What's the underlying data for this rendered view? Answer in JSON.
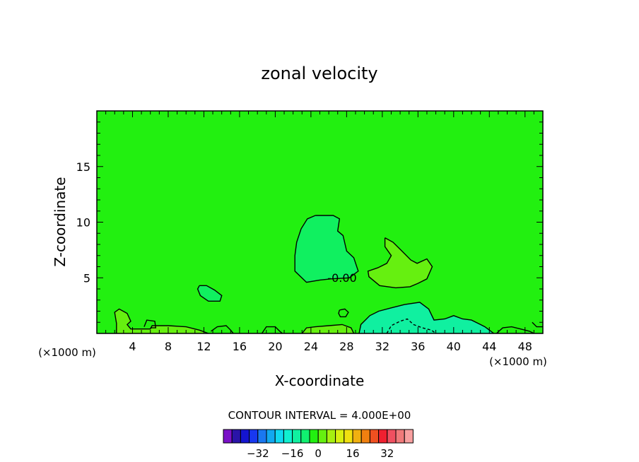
{
  "chart_data": {
    "type": "heatmap",
    "title": "zonal velocity",
    "xlabel": "X-coordinate",
    "ylabel": "Z-coordinate",
    "x_units": "(×1000 m)",
    "z_units": "(×1000 m)",
    "xlim": [
      0,
      50
    ],
    "ylim": [
      0,
      20
    ],
    "x_ticks": [
      4,
      8,
      12,
      16,
      20,
      24,
      28,
      32,
      36,
      40,
      44,
      48
    ],
    "y_ticks": [
      5,
      10,
      15
    ],
    "contour_interval_label": "CONTOUR INTERVAL = 4.000E+00",
    "contour_label": "-0.00",
    "colorbar": {
      "colors": [
        "#7a10c8",
        "#2a14a8",
        "#1414d0",
        "#1838f0",
        "#1a78f0",
        "#12a8f0",
        "#10d8f0",
        "#10f0d0",
        "#10f0a0",
        "#10f070",
        "#22f010",
        "#66f010",
        "#a6f010",
        "#d8f010",
        "#f0e010",
        "#f0b010",
        "#f08010",
        "#f05020",
        "#f02030",
        "#f05060",
        "#f07a7a",
        "#f8a0a0"
      ],
      "tick_labels": [
        "-32",
        "-16",
        "0",
        "16",
        "32"
      ]
    },
    "field": {
      "background": "#22f010",
      "regions": [
        {
          "name": "negative-core-upper",
          "fill": "#10f060",
          "points": [
            [
              24.5,
              10.6
            ],
            [
              23.6,
              10.3
            ],
            [
              22.9,
              9.4
            ],
            [
              22.4,
              8.2
            ],
            [
              22.2,
              7.0
            ],
            [
              22.2,
              5.6
            ],
            [
              23.5,
              4.6
            ],
            [
              25.0,
              4.8
            ],
            [
              26.2,
              4.9
            ],
            [
              28.3,
              5.0
            ],
            [
              29.3,
              5.6
            ],
            [
              28.8,
              6.8
            ],
            [
              28.0,
              7.4
            ],
            [
              27.6,
              8.8
            ],
            [
              27.0,
              9.2
            ],
            [
              27.2,
              10.3
            ],
            [
              26.5,
              10.6
            ]
          ]
        },
        {
          "name": "positive-patch",
          "fill": "#66f010",
          "points": [
            [
              32.3,
              8.6
            ],
            [
              33.2,
              8.2
            ],
            [
              34.2,
              7.4
            ],
            [
              35.2,
              6.6
            ],
            [
              35.9,
              6.3
            ],
            [
              37.0,
              6.7
            ],
            [
              37.6,
              6.0
            ],
            [
              37.0,
              4.9
            ],
            [
              36.0,
              4.5
            ],
            [
              35.1,
              4.2
            ],
            [
              33.5,
              4.1
            ],
            [
              31.7,
              4.3
            ],
            [
              30.5,
              5.1
            ],
            [
              30.4,
              5.6
            ],
            [
              31.5,
              5.9
            ],
            [
              32.5,
              6.3
            ],
            [
              33.0,
              7.0
            ],
            [
              32.3,
              7.8
            ]
          ]
        },
        {
          "name": "negative-small-left",
          "fill": "#10f060",
          "points": [
            [
              11.5,
              4.3
            ],
            [
              12.3,
              4.3
            ],
            [
              13.2,
              3.9
            ],
            [
              14.0,
              3.4
            ],
            [
              13.8,
              2.9
            ],
            [
              12.5,
              2.9
            ],
            [
              11.6,
              3.4
            ],
            [
              11.3,
              4.0
            ]
          ]
        },
        {
          "name": "negative-bottom-right",
          "fill": "#10f0a0",
          "points": [
            [
              29.4,
              0
            ],
            [
              29.6,
              0.8
            ],
            [
              30.6,
              1.6
            ],
            [
              31.6,
              2.0
            ],
            [
              33.0,
              2.3
            ],
            [
              34.5,
              2.6
            ],
            [
              36.2,
              2.8
            ],
            [
              37.2,
              2.2
            ],
            [
              37.8,
              1.2
            ],
            [
              39.0,
              1.3
            ],
            [
              40.0,
              1.6
            ],
            [
              41.0,
              1.3
            ],
            [
              42.0,
              1.2
            ],
            [
              43.0,
              0.8
            ],
            [
              43.5,
              0.6
            ],
            [
              44.0,
              0.3
            ],
            [
              44.5,
              0
            ]
          ]
        },
        {
          "name": "positive-bottom-left",
          "fill": "#66f010",
          "points": [
            [
              2.2,
              0
            ],
            [
              2.2,
              0.9
            ],
            [
              2.0,
              1.9
            ],
            [
              2.5,
              2.2
            ],
            [
              3.4,
              1.8
            ],
            [
              3.8,
              1.1
            ],
            [
              3.4,
              0.8
            ],
            [
              3.8,
              0.4
            ],
            [
              6.0,
              0.4
            ],
            [
              6.2,
              0.7
            ],
            [
              8.0,
              0.7
            ],
            [
              10.0,
              0.6
            ],
            [
              11.5,
              0.3
            ],
            [
              12.5,
              0
            ]
          ]
        },
        {
          "name": "positive-bottom-mid",
          "fill": "#66f010",
          "points": [
            [
              23.0,
              0
            ],
            [
              23.5,
              0.5
            ],
            [
              24.5,
              0.6
            ],
            [
              26.0,
              0.7
            ],
            [
              27.5,
              0.8
            ],
            [
              28.5,
              0.5
            ],
            [
              28.8,
              0
            ]
          ]
        }
      ],
      "contours": [
        {
          "name": "contour-upper-core",
          "points": [
            [
              24.5,
              10.6
            ],
            [
              23.6,
              10.3
            ],
            [
              22.9,
              9.4
            ],
            [
              22.4,
              8.2
            ],
            [
              22.2,
              7.0
            ],
            [
              22.2,
              5.6
            ],
            [
              23.5,
              4.6
            ],
            [
              25.0,
              4.8
            ],
            [
              26.2,
              4.9
            ],
            [
              28.3,
              5.0
            ],
            [
              29.3,
              5.6
            ],
            [
              28.8,
              6.8
            ],
            [
              28.0,
              7.4
            ],
            [
              27.6,
              8.8
            ],
            [
              27.0,
              9.2
            ],
            [
              27.2,
              10.3
            ],
            [
              26.5,
              10.6
            ],
            [
              24.5,
              10.6
            ]
          ],
          "dashed": false
        },
        {
          "name": "contour-positive-patch",
          "points": [
            [
              32.3,
              8.6
            ],
            [
              33.2,
              8.2
            ],
            [
              34.2,
              7.4
            ],
            [
              35.2,
              6.6
            ],
            [
              35.9,
              6.3
            ],
            [
              37.0,
              6.7
            ],
            [
              37.6,
              6.0
            ],
            [
              37.0,
              4.9
            ],
            [
              36.0,
              4.5
            ],
            [
              35.1,
              4.2
            ],
            [
              33.5,
              4.1
            ],
            [
              31.7,
              4.3
            ],
            [
              30.5,
              5.1
            ],
            [
              30.4,
              5.6
            ],
            [
              31.5,
              5.9
            ],
            [
              32.5,
              6.3
            ],
            [
              33.0,
              7.0
            ],
            [
              32.3,
              7.8
            ],
            [
              32.3,
              8.6
            ]
          ],
          "dashed": false
        },
        {
          "name": "contour-small-left",
          "points": [
            [
              11.5,
              4.3
            ],
            [
              12.3,
              4.3
            ],
            [
              13.2,
              3.9
            ],
            [
              14.0,
              3.4
            ],
            [
              13.8,
              2.9
            ],
            [
              12.5,
              2.9
            ],
            [
              11.6,
              3.4
            ],
            [
              11.3,
              4.0
            ],
            [
              11.5,
              4.3
            ]
          ],
          "dashed": false
        },
        {
          "name": "contour-bottom-right",
          "points": [
            [
              29.4,
              0
            ],
            [
              29.6,
              0.8
            ],
            [
              30.6,
              1.6
            ],
            [
              31.6,
              2.0
            ],
            [
              33.0,
              2.3
            ],
            [
              34.5,
              2.6
            ],
            [
              36.2,
              2.8
            ],
            [
              37.2,
              2.2
            ],
            [
              37.8,
              1.2
            ],
            [
              39.0,
              1.3
            ],
            [
              40.0,
              1.6
            ],
            [
              41.0,
              1.3
            ],
            [
              42.0,
              1.2
            ],
            [
              43.0,
              0.8
            ],
            [
              43.5,
              0.6
            ],
            [
              44.0,
              0.3
            ],
            [
              44.5,
              0
            ]
          ],
          "dashed": false
        },
        {
          "name": "contour-bottom-right-inner",
          "points": [
            [
              32.5,
              0
            ],
            [
              33.0,
              0.7
            ],
            [
              34.0,
              1.1
            ],
            [
              34.8,
              1.3
            ],
            [
              35.5,
              0.8
            ],
            [
              36.5,
              0.5
            ],
            [
              37.5,
              0.3
            ],
            [
              38.0,
              0
            ]
          ],
          "dashed": true
        },
        {
          "name": "contour-small-blob",
          "points": [
            [
              27.2,
              2.1
            ],
            [
              27.8,
              2.2
            ],
            [
              28.2,
              1.9
            ],
            [
              27.9,
              1.5
            ],
            [
              27.3,
              1.5
            ],
            [
              27.1,
              1.8
            ],
            [
              27.2,
              2.1
            ]
          ],
          "dashed": false
        },
        {
          "name": "contour-bottom-left-a",
          "points": [
            [
              2.2,
              0
            ],
            [
              2.2,
              0.9
            ],
            [
              2.0,
              1.9
            ],
            [
              2.5,
              2.2
            ],
            [
              3.4,
              1.8
            ],
            [
              3.8,
              1.1
            ],
            [
              3.4,
              0.8
            ],
            [
              3.8,
              0.4
            ],
            [
              6.0,
              0.4
            ],
            [
              6.2,
              0.7
            ],
            [
              8.0,
              0.7
            ],
            [
              10.0,
              0.6
            ],
            [
              11.5,
              0.3
            ],
            [
              12.5,
              0
            ]
          ],
          "dashed": false
        },
        {
          "name": "contour-bottom-left-b",
          "points": [
            [
              5.3,
              0.6
            ],
            [
              5.6,
              1.2
            ],
            [
              6.5,
              1.1
            ],
            [
              6.6,
              0.5
            ],
            [
              6.0,
              0.5
            ]
          ],
          "dashed": false
        },
        {
          "name": "contour-bottom-mid-a",
          "points": [
            [
              12.8,
              0.2
            ],
            [
              13.5,
              0.6
            ],
            [
              14.5,
              0.7
            ],
            [
              15.0,
              0.3
            ],
            [
              15.3,
              0
            ]
          ],
          "dashed": false
        },
        {
          "name": "contour-bottom-mid-b",
          "points": [
            [
              18.5,
              0
            ],
            [
              19.0,
              0.6
            ],
            [
              20.0,
              0.6
            ],
            [
              20.5,
              0.2
            ],
            [
              20.8,
              0
            ]
          ],
          "dashed": false
        },
        {
          "name": "contour-bottom-mid-c",
          "points": [
            [
              23.0,
              0
            ],
            [
              23.5,
              0.5
            ],
            [
              24.5,
              0.6
            ],
            [
              26.0,
              0.7
            ],
            [
              27.5,
              0.8
            ],
            [
              28.5,
              0.5
            ],
            [
              28.8,
              0
            ]
          ],
          "dashed": false
        },
        {
          "name": "contour-bottom-far-right",
          "points": [
            [
              44.8,
              0
            ],
            [
              45.5,
              0.5
            ],
            [
              46.5,
              0.6
            ],
            [
              47.5,
              0.4
            ],
            [
              48.5,
              0.2
            ],
            [
              49.0,
              0
            ]
          ],
          "dashed": false
        },
        {
          "name": "contour-right-edge",
          "points": [
            [
              48.8,
              1.0
            ],
            [
              49.3,
              0.6
            ],
            [
              50,
              0.6
            ]
          ],
          "dashed": false
        }
      ]
    }
  }
}
